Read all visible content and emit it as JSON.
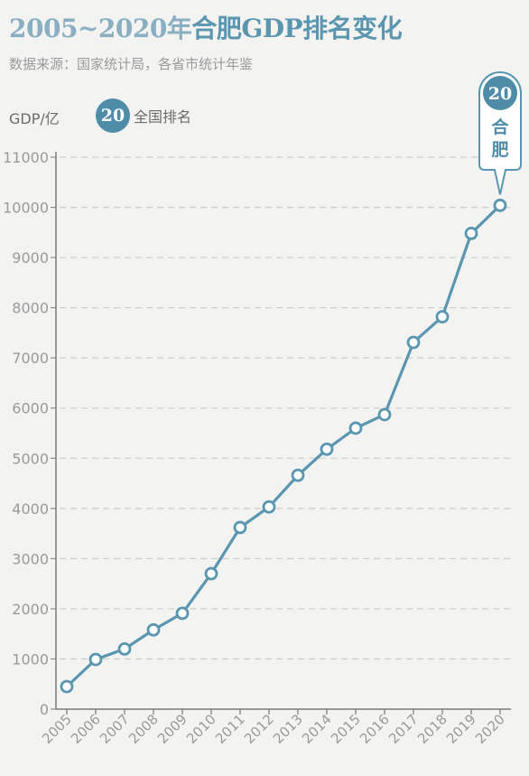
{
  "header": {
    "title_years": "2005~2020年",
    "title_main": "合肥GDP排名变化",
    "source": "数据来源：国家统计局，各省市统计年鉴"
  },
  "legend": {
    "unit": "GDP/亿",
    "rank_badge": "20",
    "rank_label": "全国排名"
  },
  "callout": {
    "rank": "20",
    "city_line1": "合",
    "city_line2": "肥"
  },
  "colors": {
    "line": "#5b96b0",
    "badge": "#4f8ca8",
    "marker_fill": "#ffffff",
    "grid": "#cfcfcf",
    "tick_text": "#9a9a9a",
    "title_light": "#8aafc2"
  },
  "chart_data": {
    "type": "line",
    "x": [
      "2005",
      "2006",
      "2007",
      "2008",
      "2009",
      "2010",
      "2011",
      "2012",
      "2013",
      "2014",
      "2015",
      "2016",
      "2017",
      "2018",
      "2019",
      "2020"
    ],
    "series": [
      {
        "values": [
          450,
          990,
          1200,
          1580,
          1910,
          2700,
          3620,
          4030,
          4660,
          5180,
          5600,
          5870,
          7310,
          7820,
          9480,
          10040
        ]
      }
    ],
    "ylabel": "GDP/亿",
    "ylim": [
      0,
      11000
    ],
    "yticks": [
      0,
      1000,
      2000,
      3000,
      4000,
      5000,
      6000,
      7000,
      8000,
      9000,
      10000,
      11000
    ],
    "grid": true
  }
}
